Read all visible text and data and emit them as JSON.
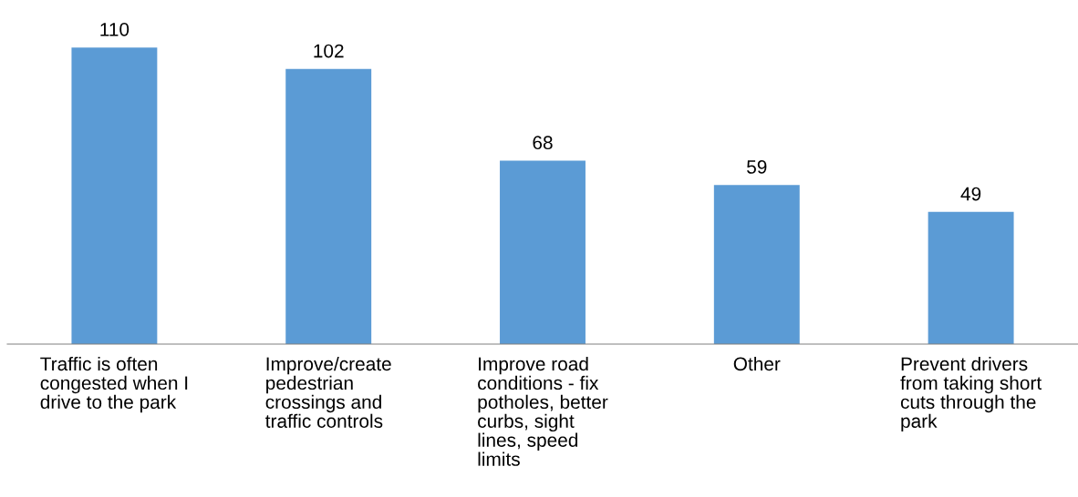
{
  "chart_data": {
    "type": "bar",
    "categories": [
      "Traffic is often congested when I drive to the park",
      "Improve/create pedestrian crossings and traffic controls",
      "Improve road conditions - fix potholes, better curbs, sight lines, speed limits",
      "Other",
      "Prevent drivers from taking short cuts through the park"
    ],
    "values": [
      110,
      102,
      68,
      59,
      49
    ],
    "color": "#5b9bd5",
    "data_labels": true,
    "grid": false,
    "legend": false
  }
}
